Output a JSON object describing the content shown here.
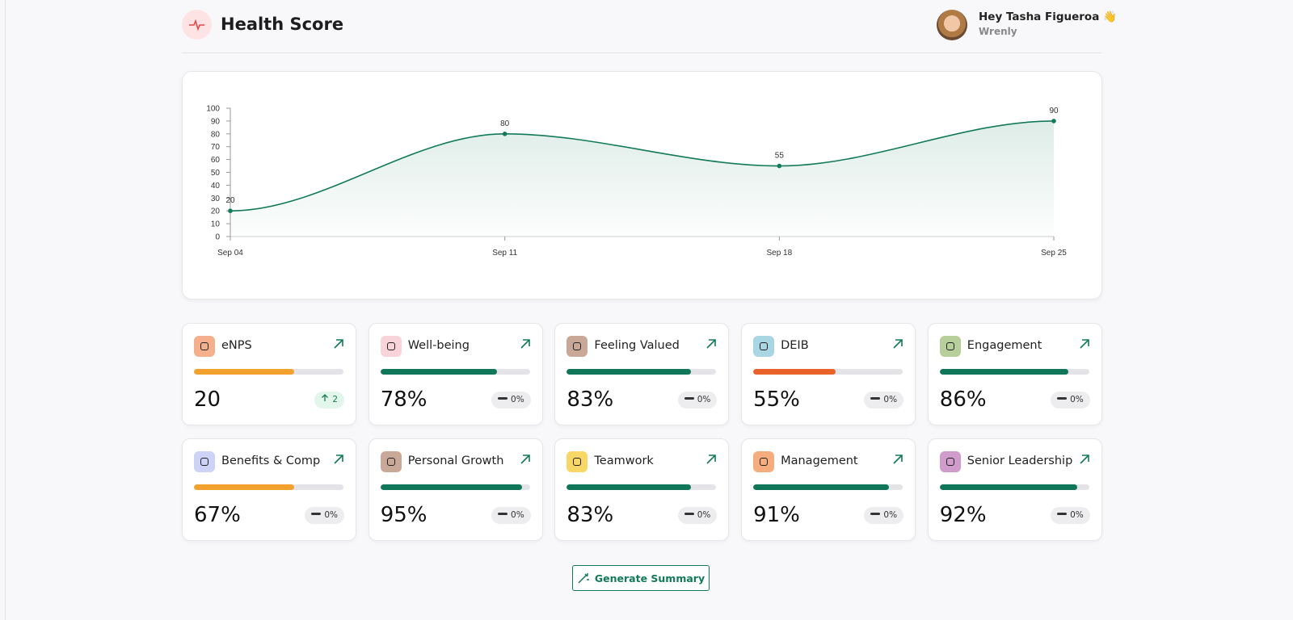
{
  "header": {
    "title": "Health Score",
    "greeting": "Hey Tasha Figueroa 👋",
    "company": "Wrenly"
  },
  "chart_data": {
    "type": "line",
    "categories": [
      "Sep 04",
      "Sep 11",
      "Sep 18",
      "Sep 25"
    ],
    "values": [
      20,
      80,
      55,
      90
    ],
    "color": "#127a5a",
    "ylim": [
      0,
      100
    ],
    "yticks": [
      0,
      10,
      20,
      30,
      40,
      50,
      60,
      70,
      80,
      90,
      100
    ]
  },
  "cards": [
    {
      "label": "eNPS",
      "value": "20",
      "progress": 67,
      "bar_color": "#f2a02e",
      "icon_color": "#f4b08c",
      "change": "2",
      "change_up": true
    },
    {
      "label": "Well-being",
      "value": "78%",
      "progress": 78,
      "bar_color": "#0f7659",
      "icon_color": "#f9d3da",
      "change": "0%",
      "change_up": false
    },
    {
      "label": "Feeling Valued",
      "value": "83%",
      "progress": 83,
      "bar_color": "#0f7659",
      "icon_color": "#c9a898",
      "change": "0%",
      "change_up": false
    },
    {
      "label": "DEIB",
      "value": "55%",
      "progress": 55,
      "bar_color": "#e8622a",
      "icon_color": "#a9d6e3",
      "change": "0%",
      "change_up": false
    },
    {
      "label": "Engagement",
      "value": "86%",
      "progress": 86,
      "bar_color": "#0f7659",
      "icon_color": "#b7cf9b",
      "change": "0%",
      "change_up": false
    },
    {
      "label": "Benefits & Comp",
      "value": "67%",
      "progress": 67,
      "bar_color": "#f2a02e",
      "icon_color": "#ccd3f6",
      "change": "0%",
      "change_up": false
    },
    {
      "label": "Personal Growth",
      "value": "95%",
      "progress": 95,
      "bar_color": "#0f7659",
      "icon_color": "#c9a898",
      "change": "0%",
      "change_up": false
    },
    {
      "label": "Teamwork",
      "value": "83%",
      "progress": 83,
      "bar_color": "#0f7659",
      "icon_color": "#f8d766",
      "change": "0%",
      "change_up": false
    },
    {
      "label": "Management",
      "value": "91%",
      "progress": 91,
      "bar_color": "#0f7659",
      "icon_color": "#f5ad7e",
      "change": "0%",
      "change_up": false
    },
    {
      "label": "Senior Leadership",
      "value": "92%",
      "progress": 92,
      "bar_color": "#0f7659",
      "icon_color": "#cf9ccc",
      "change": "0%",
      "change_up": false
    }
  ],
  "button": {
    "label": "Generate Summary"
  }
}
